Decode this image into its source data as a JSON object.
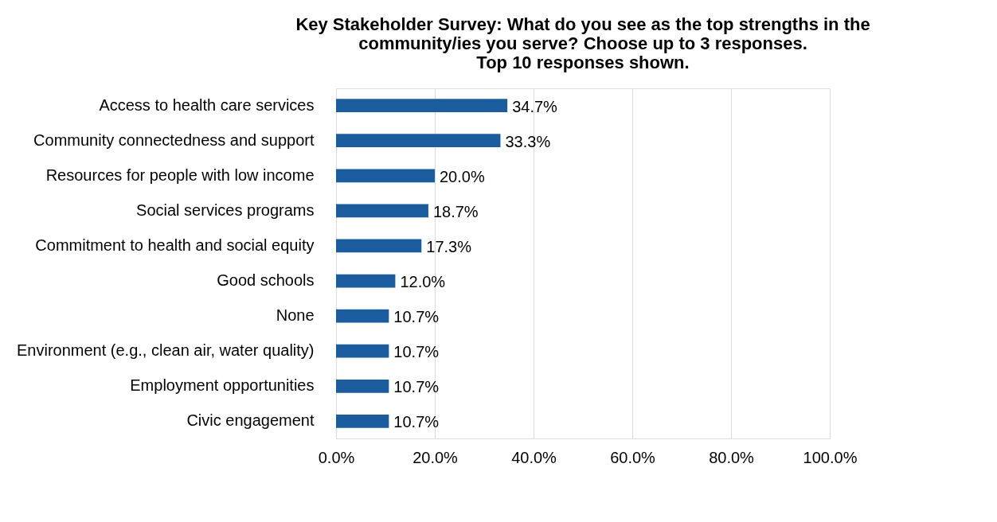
{
  "chart_data": {
    "type": "bar",
    "orientation": "horizontal",
    "title": "Key Stakeholder Survey: What do you see as the top strengths in the\ncommunity/ies you serve? Choose up to 3 responses.\nTop 10 responses shown.",
    "categories": [
      "Access to health care services",
      "Community connectedness and support",
      "Resources for people with low income",
      "Social services programs",
      "Commitment to health and social equity",
      "Good schools",
      "None",
      "Environment (e.g., clean air, water quality)",
      "Employment opportunities",
      "Civic engagement"
    ],
    "values": [
      34.7,
      33.3,
      20.0,
      18.7,
      17.3,
      12.0,
      10.7,
      10.7,
      10.7,
      10.7
    ],
    "value_labels": [
      "34.7%",
      "33.3%",
      "20.0%",
      "18.7%",
      "17.3%",
      "12.0%",
      "10.7%",
      "10.7%",
      "10.7%",
      "10.7%"
    ],
    "color": "#1b5c9e",
    "xlim": [
      0,
      100
    ],
    "xticks": [
      {
        "value": 0,
        "label": "0.0%"
      },
      {
        "value": 20,
        "label": "20.0%"
      },
      {
        "value": 40,
        "label": "40.0%"
      },
      {
        "value": 60,
        "label": "60.0%"
      },
      {
        "value": 80,
        "label": "80.0%"
      },
      {
        "value": 100,
        "label": "100.0%"
      }
    ],
    "grid": "x"
  }
}
